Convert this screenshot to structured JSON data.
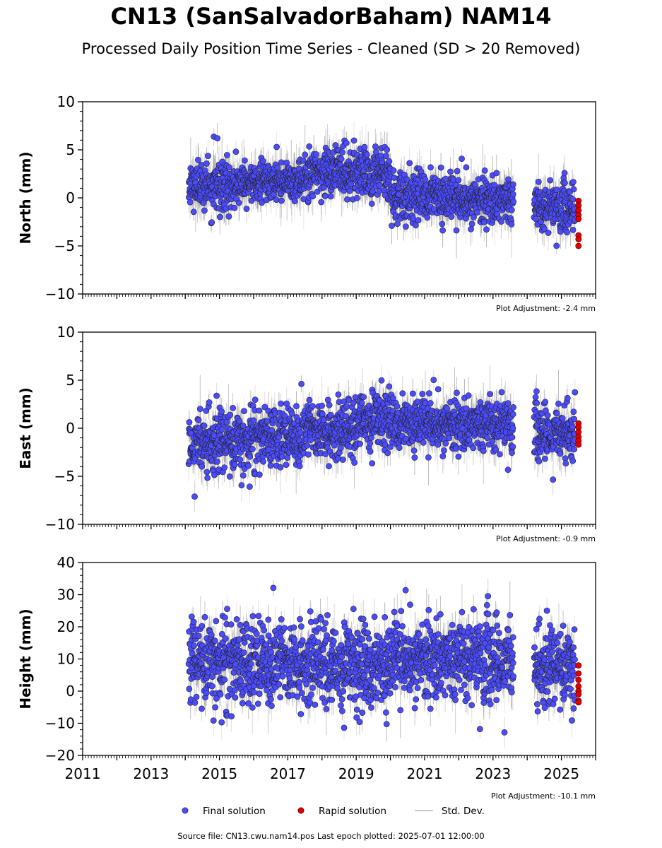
{
  "figure": {
    "title": "CN13 (SanSalvadorBaham) NAM14",
    "subtitle": "Processed Daily Position Time Series - Cleaned (SD > 20 Removed)",
    "footer": "Source file: CN13.cwu.nam14.pos  Last epoch plotted: 2025-07-01 12:00:00",
    "colors": {
      "final": "#4b4bff",
      "rapid": "#e00000",
      "stddev": "#c8c8c8",
      "edge": "#222222"
    }
  },
  "legend": {
    "items": [
      {
        "label": "Final solution",
        "marker": "circle",
        "color": "#4b4bff"
      },
      {
        "label": "Rapid solution",
        "marker": "circle",
        "color": "#e00000"
      },
      {
        "label": "Std. Dev.",
        "marker": "line",
        "color": "#c8c8c8"
      }
    ]
  },
  "chart_data": [
    {
      "type": "scatter",
      "ylabel": "North (mm)",
      "xlim": [
        2011,
        2026
      ],
      "ylim": [
        -10,
        10
      ],
      "yticks": [
        -10,
        -5,
        0,
        5,
        10
      ],
      "adjustment": "Plot Adjustment: -2.4 mm",
      "series": [
        {
          "name": "Final solution",
          "segments": [
            {
              "x": [
                2014.1,
                2015.9
              ],
              "mean": 1.2,
              "sd": 1.1
            },
            {
              "x": [
                2015.9,
                2017.5
              ],
              "mean": 1.6,
              "sd": 1.0
            },
            {
              "x": [
                2017.5,
                2019.0
              ],
              "mean": 2.7,
              "sd": 1.2
            },
            {
              "x": [
                2019.0,
                2020.0
              ],
              "mean": 2.6,
              "sd": 1.3
            },
            {
              "x": [
                2020.0,
                2021.5
              ],
              "mean": 0.2,
              "sd": 1.2
            },
            {
              "x": [
                2021.5,
                2023.6
              ],
              "mean": -0.2,
              "sd": 1.2
            },
            {
              "x": [
                2024.2,
                2025.4
              ],
              "mean": -1.0,
              "sd": 1.1
            }
          ]
        },
        {
          "name": "Rapid solution",
          "x": [
            2025.5,
            2025.5,
            2025.5,
            2025.5,
            2025.5,
            2025.5,
            2025.5,
            2025.5
          ],
          "y": [
            -0.3,
            -0.8,
            -1.3,
            -1.8,
            -2.2,
            -3.9,
            -4.3,
            -5.0
          ]
        }
      ]
    },
    {
      "type": "scatter",
      "ylabel": "East (mm)",
      "xlim": [
        2011,
        2026
      ],
      "ylim": [
        -10,
        10
      ],
      "yticks": [
        -10,
        -5,
        0,
        5,
        10
      ],
      "adjustment": "Plot Adjustment: -0.9 mm",
      "series": [
        {
          "name": "Final solution",
          "segments": [
            {
              "x": [
                2014.1,
                2015.9
              ],
              "mean": -1.4,
              "sd": 1.5
            },
            {
              "x": [
                2015.9,
                2017.5
              ],
              "mean": -0.9,
              "sd": 1.4
            },
            {
              "x": [
                2017.5,
                2019.0
              ],
              "mean": -0.3,
              "sd": 1.4
            },
            {
              "x": [
                2019.0,
                2020.0
              ],
              "mean": 1.0,
              "sd": 1.4
            },
            {
              "x": [
                2020.0,
                2023.6
              ],
              "mean": 0.4,
              "sd": 1.3
            },
            {
              "x": [
                2024.2,
                2025.4
              ],
              "mean": -0.4,
              "sd": 1.3
            }
          ]
        },
        {
          "name": "Rapid solution",
          "x": [
            2025.5,
            2025.5,
            2025.5,
            2025.5,
            2025.5,
            2025.5
          ],
          "y": [
            0.5,
            0.1,
            -0.4,
            -0.9,
            -1.3,
            -1.7
          ]
        }
      ]
    },
    {
      "type": "scatter",
      "ylabel": "Height (mm)",
      "xlim": [
        2011,
        2026
      ],
      "ylim": [
        -20,
        40
      ],
      "yticks": [
        -20,
        -10,
        0,
        10,
        20,
        30,
        40
      ],
      "xticks": [
        2011,
        2013,
        2015,
        2017,
        2019,
        2021,
        2023,
        2025
      ],
      "adjustment": "Plot Adjustment: -10.1 mm",
      "series": [
        {
          "name": "Final solution",
          "segments": [
            {
              "x": [
                2014.1,
                2015.9
              ],
              "mean": 9.0,
              "sd": 6.0
            },
            {
              "x": [
                2015.9,
                2019.0
              ],
              "mean": 8.5,
              "sd": 6.0
            },
            {
              "x": [
                2019.0,
                2020.0
              ],
              "mean": 7.0,
              "sd": 6.5
            },
            {
              "x": [
                2020.0,
                2023.6
              ],
              "mean": 10.0,
              "sd": 6.0
            },
            {
              "x": [
                2024.2,
                2025.4
              ],
              "mean": 7.5,
              "sd": 5.5
            }
          ]
        },
        {
          "name": "Rapid solution",
          "x": [
            2025.5,
            2025.5,
            2025.5,
            2025.5,
            2025.5,
            2025.5,
            2025.5,
            2025.5
          ],
          "y": [
            8.0,
            5.5,
            3.5,
            1.5,
            0.0,
            -1.0,
            -3.0,
            -3.5
          ]
        }
      ]
    }
  ]
}
